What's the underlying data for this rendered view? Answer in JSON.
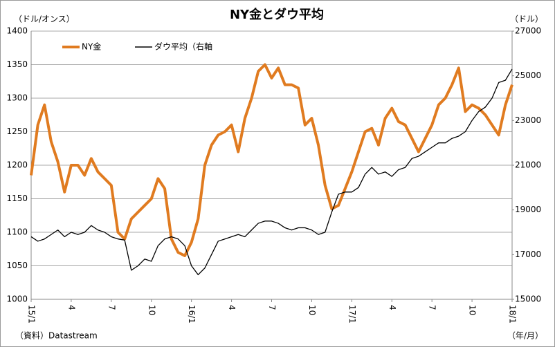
{
  "chart_data": {
    "type": "line",
    "title": "NY金とダウ平均",
    "y_label": "（ドル/オンス）",
    "y2_label": "（ドル）",
    "source": "（資料）Datastream",
    "x_label": "（年/月）",
    "x": [
      0,
      0.5,
      1,
      1.5,
      2,
      2.5,
      3,
      3.5,
      4,
      4.5,
      5,
      5.5,
      6,
      6.5,
      7,
      7.5,
      8,
      8.5,
      9,
      9.5,
      10,
      10.5,
      11,
      11.5,
      12,
      12.5,
      13,
      13.5,
      14,
      14.5,
      15,
      15.5,
      16,
      16.5,
      17,
      17.5,
      18,
      18.5,
      19,
      19.5,
      20,
      20.5,
      21,
      21.5,
      22,
      22.5,
      23,
      23.5,
      24,
      24.5,
      25,
      25.5,
      26,
      26.5,
      27,
      27.5,
      28,
      28.5,
      29,
      29.5,
      30,
      30.5,
      31,
      31.5,
      32,
      32.5,
      33,
      33.5,
      34,
      34.5,
      35,
      35.5,
      36
    ],
    "series": [
      {
        "name": "NY金",
        "color": "#e07b20",
        "values": [
          1185,
          1260,
          1290,
          1235,
          1205,
          1160,
          1200,
          1200,
          1185,
          1210,
          1190,
          1180,
          1170,
          1100,
          1090,
          1120,
          1130,
          1140,
          1150,
          1180,
          1165,
          1090,
          1070,
          1065,
          1085,
          1120,
          1200,
          1230,
          1245,
          1250,
          1260,
          1220,
          1270,
          1300,
          1340,
          1350,
          1330,
          1345,
          1320,
          1320,
          1315,
          1260,
          1270,
          1230,
          1170,
          1135,
          1140,
          1165,
          1190,
          1220,
          1250,
          1255,
          1230,
          1270,
          1285,
          1265,
          1260,
          1240,
          1220,
          1240,
          1260,
          1290,
          1300,
          1320,
          1345,
          1280,
          1290,
          1285,
          1275,
          1260,
          1245,
          1290,
          1320
        ]
      },
      {
        "name": "ダウ平均（右軸",
        "color": "#000000",
        "axis": "y2",
        "values": [
          17800,
          17600,
          17700,
          17900,
          18100,
          17800,
          18000,
          17900,
          18000,
          18300,
          18100,
          18000,
          17800,
          17700,
          17650,
          16300,
          16500,
          16800,
          16700,
          17400,
          17700,
          17800,
          17700,
          17400,
          16500,
          16100,
          16400,
          17000,
          17600,
          17700,
          17800,
          17900,
          17800,
          18100,
          18400,
          18500,
          18500,
          18400,
          18200,
          18100,
          18200,
          18200,
          18100,
          17900,
          18000,
          18900,
          19700,
          19800,
          19800,
          20000,
          20600,
          20900,
          20600,
          20700,
          20500,
          20800,
          20900,
          21300,
          21400,
          21600,
          21800,
          22000,
          22000,
          22200,
          22300,
          22500,
          23000,
          23400,
          23600,
          24000,
          24700,
          24800,
          25300
        ]
      }
    ],
    "xlim": [
      0,
      36
    ],
    "xticks": [
      {
        "value": 0,
        "label": "15/1"
      },
      {
        "value": 3,
        "label": "4"
      },
      {
        "value": 6,
        "label": "7"
      },
      {
        "value": 9,
        "label": "10"
      },
      {
        "value": 12,
        "label": "16/1"
      },
      {
        "value": 15,
        "label": "4"
      },
      {
        "value": 18,
        "label": "7"
      },
      {
        "value": 21,
        "label": "10"
      },
      {
        "value": 24,
        "label": "17/1"
      },
      {
        "value": 27,
        "label": "4"
      },
      {
        "value": 30,
        "label": "7"
      },
      {
        "value": 33,
        "label": "10"
      },
      {
        "value": 36,
        "label": "18/1"
      }
    ],
    "ylim": [
      1000,
      1400
    ],
    "yticks": [
      1000,
      1050,
      1100,
      1150,
      1200,
      1250,
      1300,
      1350,
      1400
    ],
    "y2lim": [
      15000,
      27000
    ],
    "y2ticks": [
      15000,
      17000,
      19000,
      21000,
      23000,
      25000,
      27000
    ],
    "grid": true
  }
}
